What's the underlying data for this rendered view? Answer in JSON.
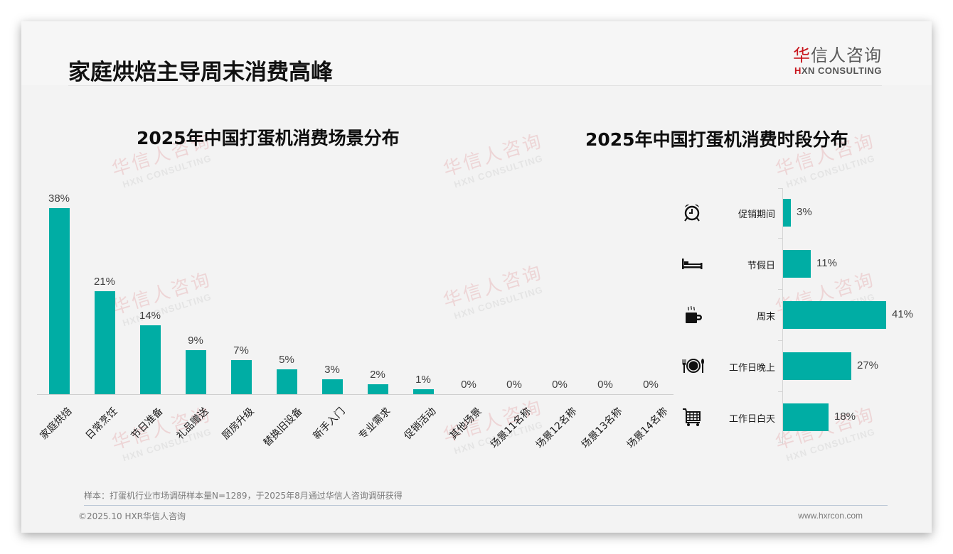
{
  "page": {
    "title": "家庭烘焙主导周末消费高峰",
    "logo": {
      "cn_red": "华",
      "cn_rest": "信人咨询",
      "en_mark": "H",
      "en_rest": "XN CONSULTING"
    },
    "watermark": {
      "cn": "华信人咨询",
      "en": "HXN CONSULTING"
    },
    "note": "样本：打蛋机行业市场调研样本量N=1289，于2025年8月通过华信人咨询调研获得",
    "footer_left": "©2025.10 HXR华信人咨询",
    "footer_right": "www.hxrcon.com",
    "colors": {
      "bar": "#00ada4",
      "brand_red": "#c8161d"
    }
  },
  "chart_data": [
    {
      "type": "bar",
      "title": "2025年中国打蛋机消费场景分布",
      "xlabel": "",
      "ylabel": "",
      "categories": [
        "家庭烘焙",
        "日常烹饪",
        "节日准备",
        "礼品赠送",
        "厨房升级",
        "替换旧设备",
        "新手入门",
        "专业需求",
        "促销活动",
        "其他场景",
        "场景11名称",
        "场景12名称",
        "场景13名称",
        "场景14名称"
      ],
      "values": [
        38,
        21,
        14,
        9,
        7,
        5,
        3,
        2,
        1,
        0,
        0,
        0,
        0,
        0
      ],
      "labels": [
        "38%",
        "21%",
        "14%",
        "9%",
        "7%",
        "5%",
        "3%",
        "2%",
        "1%",
        "0%",
        "0%",
        "0%",
        "0%",
        "0%"
      ],
      "unit": "%",
      "ylim": [
        0,
        40
      ],
      "grid": false,
      "legend": "none"
    },
    {
      "type": "bar",
      "orientation": "horizontal",
      "title": "2025年中国打蛋机消费时段分布",
      "categories": [
        "促销期间",
        "节假日",
        "周末",
        "工作日晚上",
        "工作日白天"
      ],
      "icons": [
        "alarm-clock-icon",
        "bed-icon",
        "coffee-mug-icon",
        "plate-cutlery-icon",
        "shopping-cart-icon"
      ],
      "values": [
        3,
        11,
        41,
        27,
        18
      ],
      "labels": [
        "3%",
        "11%",
        "41%",
        "27%",
        "18%"
      ],
      "unit": "%",
      "xlim": [
        0,
        45
      ],
      "grid": false,
      "legend": "none"
    }
  ]
}
